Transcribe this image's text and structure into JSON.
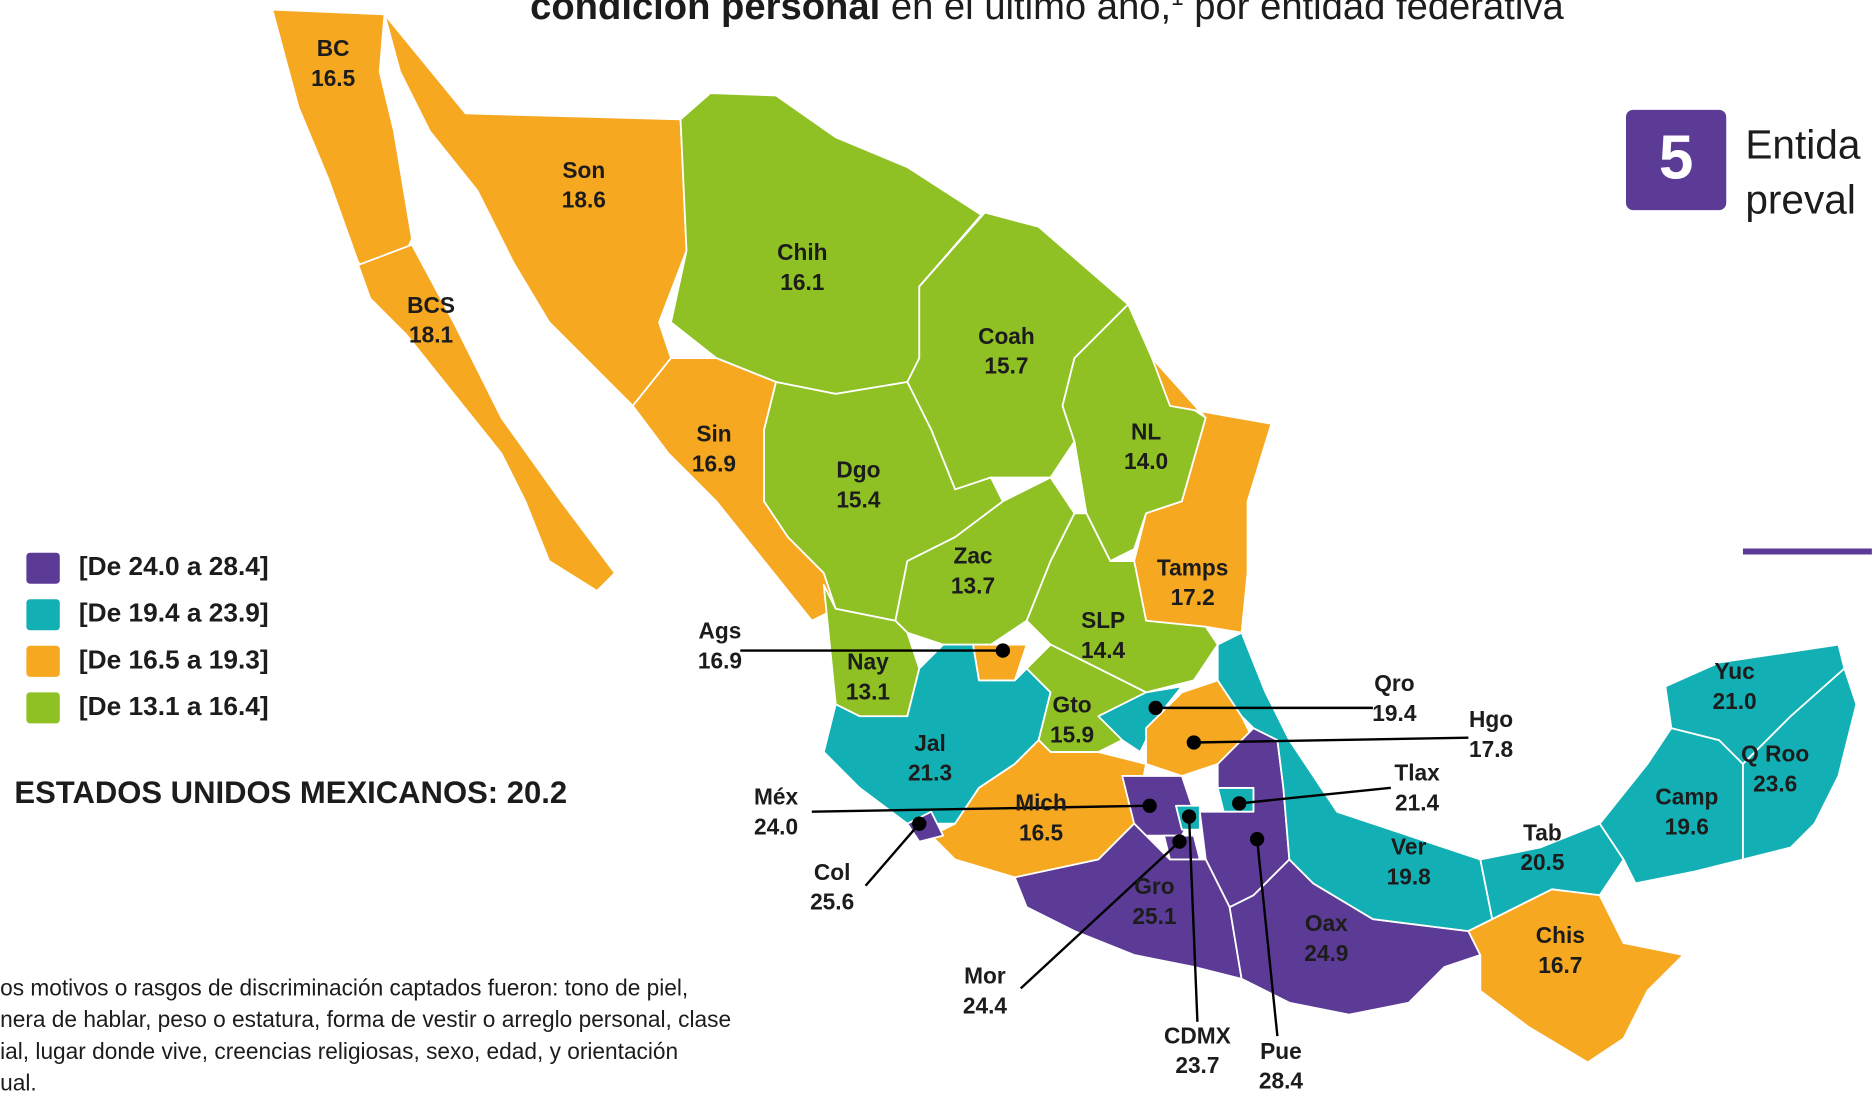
{
  "header": {
    "title_bold": "condición personal",
    "title_rest": " en el último año,",
    "title_sup": "1",
    "title_end": " por entidad federativa"
  },
  "side_panel": {
    "number": "5",
    "line1": "Entida",
    "line2": "preval"
  },
  "legend": [
    {
      "label": "[De 24.0 a 28.4]",
      "color": "#5c3b97"
    },
    {
      "label": "[De 19.4 a 23.9]",
      "color": "#12b0b4"
    },
    {
      "label": "[De 16.5 a 19.3]",
      "color": "#f6a821"
    },
    {
      "label": "[De 13.1 a 16.4]",
      "color": "#8fc124"
    }
  ],
  "national": "ESTADOS UNIDOS MEXICANOS: 20.2",
  "states": [
    {
      "abbr": "BC",
      "value": "16.5",
      "color": "#f6a821"
    },
    {
      "abbr": "Son",
      "value": "18.6",
      "color": "#f6a821"
    },
    {
      "abbr": "BCS",
      "value": "18.1",
      "color": "#f6a821"
    },
    {
      "abbr": "Chih",
      "value": "16.1",
      "color": "#8fc124"
    },
    {
      "abbr": "Coah",
      "value": "15.7",
      "color": "#8fc124"
    },
    {
      "abbr": "Sin",
      "value": "16.9",
      "color": "#f6a821"
    },
    {
      "abbr": "Dgo",
      "value": "15.4",
      "color": "#8fc124"
    },
    {
      "abbr": "NL",
      "value": "14.0",
      "color": "#8fc124"
    },
    {
      "abbr": "Tamps",
      "value": "17.2",
      "color": "#f6a821"
    },
    {
      "abbr": "Zac",
      "value": "13.7",
      "color": "#8fc124"
    },
    {
      "abbr": "SLP",
      "value": "14.4",
      "color": "#8fc124"
    },
    {
      "abbr": "Nay",
      "value": "13.1",
      "color": "#8fc124"
    },
    {
      "abbr": "Ags",
      "value": "16.9",
      "color": "#f6a821"
    },
    {
      "abbr": "Jal",
      "value": "21.3",
      "color": "#12b0b4"
    },
    {
      "abbr": "Gto",
      "value": "15.9",
      "color": "#8fc124"
    },
    {
      "abbr": "Qro",
      "value": "19.4",
      "color": "#12b0b4"
    },
    {
      "abbr": "Hgo",
      "value": "17.8",
      "color": "#f6a821"
    },
    {
      "abbr": "Mich",
      "value": "16.5",
      "color": "#f6a821"
    },
    {
      "abbr": "Col",
      "value": "25.6",
      "color": "#5c3b97"
    },
    {
      "abbr": "Méx",
      "value": "24.0",
      "color": "#5c3b97"
    },
    {
      "abbr": "CDMX",
      "value": "23.7",
      "color": "#12b0b4"
    },
    {
      "abbr": "Mor",
      "value": "24.4",
      "color": "#5c3b97"
    },
    {
      "abbr": "Tlax",
      "value": "21.4",
      "color": "#12b0b4"
    },
    {
      "abbr": "Pue",
      "value": "28.4",
      "color": "#5c3b97"
    },
    {
      "abbr": "Gro",
      "value": "25.1",
      "color": "#5c3b97"
    },
    {
      "abbr": "Oax",
      "value": "24.9",
      "color": "#5c3b97"
    },
    {
      "abbr": "Ver",
      "value": "19.8",
      "color": "#12b0b4"
    },
    {
      "abbr": "Tab",
      "value": "20.5",
      "color": "#12b0b4"
    },
    {
      "abbr": "Chis",
      "value": "16.7",
      "color": "#f6a821"
    },
    {
      "abbr": "Camp",
      "value": "19.6",
      "color": "#12b0b4"
    },
    {
      "abbr": "Yuc",
      "value": "21.0",
      "color": "#12b0b4"
    },
    {
      "abbr": "Q Roo",
      "value": "23.6",
      "color": "#12b0b4"
    }
  ],
  "footnote": [
    "os motivos o rasgos de discriminación captados fueron: tono de piel,",
    "nera de hablar, peso o estatura, forma de vestir o arreglo personal, clase",
    "ial, lugar donde vive, creencias religiosas, sexo, edad, y orientación",
    "ual."
  ]
}
